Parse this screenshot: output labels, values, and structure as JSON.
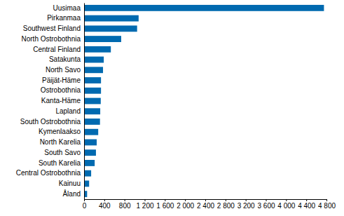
{
  "chart_data": {
    "type": "bar",
    "orientation": "horizontal",
    "categories": [
      "Uusimaa",
      "Pirkanmaa",
      "Southwest Finland",
      "North Ostrobothnia",
      "Central Finland",
      "Satakunta",
      "North Savo",
      "Päijät-Häme",
      "Ostrobothnia",
      "Kanta-Häme",
      "Lapland",
      "South Ostrobothnia",
      "Kymenlaakso",
      "North Karelia",
      "South Savo",
      "South Karelia",
      "Central Ostrobothnia",
      "Kainuu",
      "Åland"
    ],
    "values": [
      4750,
      1080,
      1050,
      735,
      530,
      390,
      375,
      335,
      335,
      330,
      320,
      315,
      280,
      250,
      235,
      210,
      140,
      100,
      60
    ],
    "color": "#006ab0",
    "xlim": [
      0,
      4800
    ],
    "xticks": [
      0,
      400,
      800,
      {
        "value": 1200,
        "label": "1 200"
      },
      {
        "value": 1600,
        "label": "1 600"
      },
      {
        "value": 2000,
        "label": "2 000"
      },
      {
        "value": 2400,
        "label": "2 400"
      },
      {
        "value": 2800,
        "label": "2 800"
      },
      {
        "value": 3200,
        "label": "3 200"
      },
      {
        "value": 3600,
        "label": "3 600"
      },
      {
        "value": 4000,
        "label": "4 000"
      },
      {
        "value": 4400,
        "label": "4 400"
      },
      {
        "value": 4800,
        "label": "4 800"
      }
    ],
    "grid": false
  }
}
